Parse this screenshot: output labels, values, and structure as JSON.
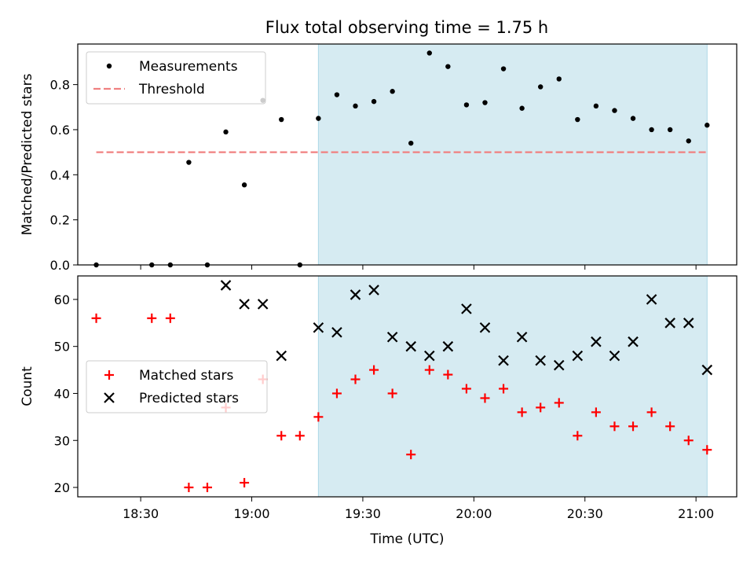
{
  "figure": {
    "title": "Flux total observing time = 1.75 h",
    "colors": {
      "shade": "#add8e6",
      "threshold": "#f08080",
      "measurement": "#000000",
      "matched": "#ff0000",
      "predicted": "#000000"
    }
  },
  "chart_data": [
    {
      "type": "scatter",
      "title": "Flux total observing time = 1.75 h",
      "xlabel": "",
      "ylabel": "Matched/Predicted stars",
      "ylim": [
        0,
        0.98
      ],
      "yticks": [
        0.0,
        0.2,
        0.4,
        0.6,
        0.8
      ],
      "ytick_labels": [
        "0.0",
        "0.2",
        "0.4",
        "0.6",
        "0.8"
      ],
      "xlim": [
        "18:13",
        "21:11"
      ],
      "xticks": [
        "18:30",
        "19:00",
        "19:30",
        "20:00",
        "20:30",
        "21:00"
      ],
      "shaded_region": [
        "19:18",
        "21:03"
      ],
      "legend_position": "upper left",
      "series": [
        {
          "name": "Measurements",
          "marker": "dot",
          "x": [
            "18:18",
            "18:33",
            "18:38",
            "18:43",
            "18:48",
            "18:53",
            "18:58",
            "19:03",
            "19:08",
            "19:13",
            "19:18",
            "19:23",
            "19:28",
            "19:33",
            "19:38",
            "19:43",
            "19:48",
            "19:53",
            "19:58",
            "20:03",
            "20:08",
            "20:13",
            "20:18",
            "20:23",
            "20:28",
            "20:33",
            "20:38",
            "20:43",
            "20:48",
            "20:53",
            "20:58",
            "21:03"
          ],
          "y": [
            0.0,
            0.0,
            0.0,
            0.455,
            0.0,
            0.59,
            0.355,
            0.73,
            0.645,
            0.0,
            0.65,
            0.755,
            0.705,
            0.725,
            0.77,
            0.54,
            0.94,
            0.88,
            0.71,
            0.72,
            0.87,
            0.695,
            0.79,
            0.825,
            0.645,
            0.705,
            0.685,
            0.65,
            0.6,
            0.6,
            0.55,
            0.62
          ]
        },
        {
          "name": "Threshold",
          "style": "dashed",
          "x": [
            "18:18",
            "21:03"
          ],
          "y": [
            0.5,
            0.5
          ]
        }
      ]
    },
    {
      "type": "scatter",
      "xlabel": "Time (UTC)",
      "ylabel": "Count",
      "ylim": [
        18,
        65
      ],
      "yticks": [
        20,
        30,
        40,
        50,
        60
      ],
      "ytick_labels": [
        "20",
        "30",
        "40",
        "50",
        "60"
      ],
      "xlim": [
        "18:13",
        "21:11"
      ],
      "xticks": [
        "18:30",
        "19:00",
        "19:30",
        "20:00",
        "20:30",
        "21:00"
      ],
      "xtick_labels": [
        "18:30",
        "19:00",
        "19:30",
        "20:00",
        "20:30",
        "21:00"
      ],
      "shaded_region": [
        "19:18",
        "21:03"
      ],
      "legend_position": "center left",
      "series": [
        {
          "name": "Matched stars",
          "marker": "plus",
          "x": [
            "18:18",
            "18:33",
            "18:38",
            "18:43",
            "18:48",
            "18:53",
            "18:58",
            "19:03",
            "19:08",
            "19:13",
            "19:18",
            "19:23",
            "19:28",
            "19:33",
            "19:38",
            "19:43",
            "19:48",
            "19:53",
            "19:58",
            "20:03",
            "20:08",
            "20:13",
            "20:18",
            "20:23",
            "20:28",
            "20:33",
            "20:38",
            "20:43",
            "20:48",
            "20:53",
            "20:58",
            "21:03"
          ],
          "y": [
            56,
            56,
            56,
            20,
            20,
            37,
            21,
            43,
            31,
            31,
            35,
            40,
            43,
            45,
            40,
            27,
            45,
            44,
            41,
            39,
            41,
            36,
            37,
            38,
            31,
            36,
            33,
            33,
            36,
            33,
            30,
            28
          ]
        },
        {
          "name": "Predicted stars",
          "marker": "x",
          "x": [
            "18:53",
            "18:58",
            "19:03",
            "19:08",
            "19:18",
            "19:23",
            "19:28",
            "19:33",
            "19:38",
            "19:43",
            "19:48",
            "19:53",
            "19:58",
            "20:03",
            "20:08",
            "20:13",
            "20:18",
            "20:23",
            "20:28",
            "20:33",
            "20:38",
            "20:43",
            "20:48",
            "20:53",
            "20:58",
            "21:03"
          ],
          "y": [
            63,
            59,
            59,
            48,
            54,
            53,
            61,
            62,
            52,
            50,
            48,
            50,
            58,
            54,
            47,
            52,
            47,
            46,
            48,
            51,
            48,
            51,
            60,
            55,
            55,
            45
          ]
        }
      ]
    }
  ]
}
